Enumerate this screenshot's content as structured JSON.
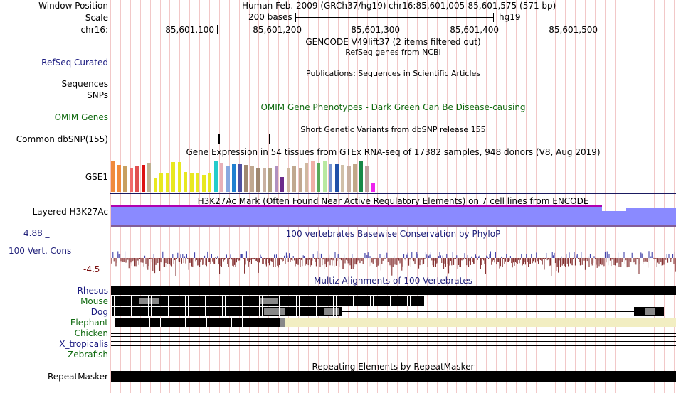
{
  "header": {
    "window_position_label": "Window Position",
    "scale_label": "Scale",
    "chrom_label": "chr16:",
    "assembly": "Human Feb. 2009 (GRCh37/hg19)",
    "position": "chr16:85,601,005-85,601,575 (571 bp)",
    "scale_text": "200 bases",
    "scale_db": "hg19",
    "ruler_ticks": [
      "85,601,100",
      "85,601,200",
      "85,601,300",
      "85,601,400",
      "85,601,500"
    ]
  },
  "tracks": {
    "gencode_title": "GENCODE V49lift37 (2 items filtered out)",
    "refseq_title": "RefSeq genes from NCBI",
    "refseq_label": "RefSeq Curated",
    "publications_title": "Publications: Sequences in Scientific Articles",
    "sequences_label": "Sequences",
    "snps_label": "SNPs",
    "omim_label": "OMIM Genes",
    "omim_title": "OMIM Gene Phenotypes - Dark Green Can Be Disease-causing",
    "dbsnp_title": "Short Genetic Variants from dbSNP release 155",
    "dbsnp_label": "Common dbSNP(155)",
    "gtex_title": "Gene Expression in 54 tissues from GTEx RNA-seq of 17382 samples, 948 donors (V8, Aug 2019)",
    "gtex_label": "GSE1",
    "h3k27ac_title": "H3K27Ac Mark (Often Found Near Active Regulatory Elements) on 7 cell lines from ENCODE",
    "h3k27ac_label": "Layered H3K27Ac",
    "phylop_title": "100 vertebrates Basewise Conservation by PhyloP",
    "phylop_label": "100 Vert. Cons",
    "phylop_max": "4.88 _",
    "phylop_min": "-4.5 _",
    "multiz_title": "Multiz Alignments of 100 Vertebrates",
    "species": [
      "Rhesus",
      "Mouse",
      "Dog",
      "Elephant",
      "Chicken",
      "X_tropicalis",
      "Zebrafish"
    ],
    "repeat_title": "Repeating Elements by RepeatMasker",
    "repeat_label": "RepeatMasker"
  },
  "gtex_bars": [
    {
      "color": "#f08a3c",
      "value": 0.92
    },
    {
      "color": "#f08a3c",
      "value": 0.8
    },
    {
      "color": "#c8a060",
      "value": 0.78
    },
    {
      "color": "#f06c6c",
      "value": 0.72
    },
    {
      "color": "#e05050",
      "value": 0.78
    },
    {
      "color": "#dd1111",
      "value": 0.8
    },
    {
      "color": "#c0b090",
      "value": 0.85
    },
    {
      "color": "#e8e820",
      "value": 0.42
    },
    {
      "color": "#e8e820",
      "value": 0.55
    },
    {
      "color": "#e8e820",
      "value": 0.55
    },
    {
      "color": "#e8e820",
      "value": 0.9
    },
    {
      "color": "#e8e820",
      "value": 0.9
    },
    {
      "color": "#e8e820",
      "value": 0.6
    },
    {
      "color": "#e8e820",
      "value": 0.58
    },
    {
      "color": "#e8e820",
      "value": 0.55
    },
    {
      "color": "#e8e820",
      "value": 0.5
    },
    {
      "color": "#e8e820",
      "value": 0.55
    },
    {
      "color": "#22cccc",
      "value": 0.92
    },
    {
      "color": "#e8b0b8",
      "value": 0.85
    },
    {
      "color": "#88a8e0",
      "value": 0.78
    },
    {
      "color": "#2080d0",
      "value": 0.82
    },
    {
      "color": "#5050a0",
      "value": 0.82
    },
    {
      "color": "#a08870",
      "value": 0.8
    },
    {
      "color": "#c0a890",
      "value": 0.78
    },
    {
      "color": "#a08870",
      "value": 0.72
    },
    {
      "color": "#c8b0a0",
      "value": 0.72
    },
    {
      "color": "#b0a080",
      "value": 0.72
    },
    {
      "color": "#b090c0",
      "value": 0.78
    },
    {
      "color": "#6a2a8a",
      "value": 0.45
    },
    {
      "color": "#d0b8a0",
      "value": 0.7
    },
    {
      "color": "#c0a890",
      "value": 0.78
    },
    {
      "color": "#c0a890",
      "value": 0.7
    },
    {
      "color": "#d0b8a0",
      "value": 0.85
    },
    {
      "color": "#f0b0a8",
      "value": 0.92
    },
    {
      "color": "#5aaa5a",
      "value": 0.85
    },
    {
      "color": "#b8e8a0",
      "value": 0.92
    },
    {
      "color": "#7090d0",
      "value": 0.82
    },
    {
      "color": "#2050a8",
      "value": 0.82
    },
    {
      "color": "#d0c0a8",
      "value": 0.8
    },
    {
      "color": "#c8b0a0",
      "value": 0.78
    },
    {
      "color": "#c0a888",
      "value": 0.82
    },
    {
      "color": "#188848",
      "value": 0.92
    },
    {
      "color": "#c0a0a0",
      "value": 0.78
    },
    {
      "color": "#ee22ee",
      "value": 0.28
    }
  ],
  "colors": {
    "h3k27ac": "#8888ff",
    "phylop_pos": "#3030a0",
    "phylop_neg": "#7a1f1f",
    "elephant_gap": "#f2eec2",
    "grid": "#f2c8c8"
  }
}
